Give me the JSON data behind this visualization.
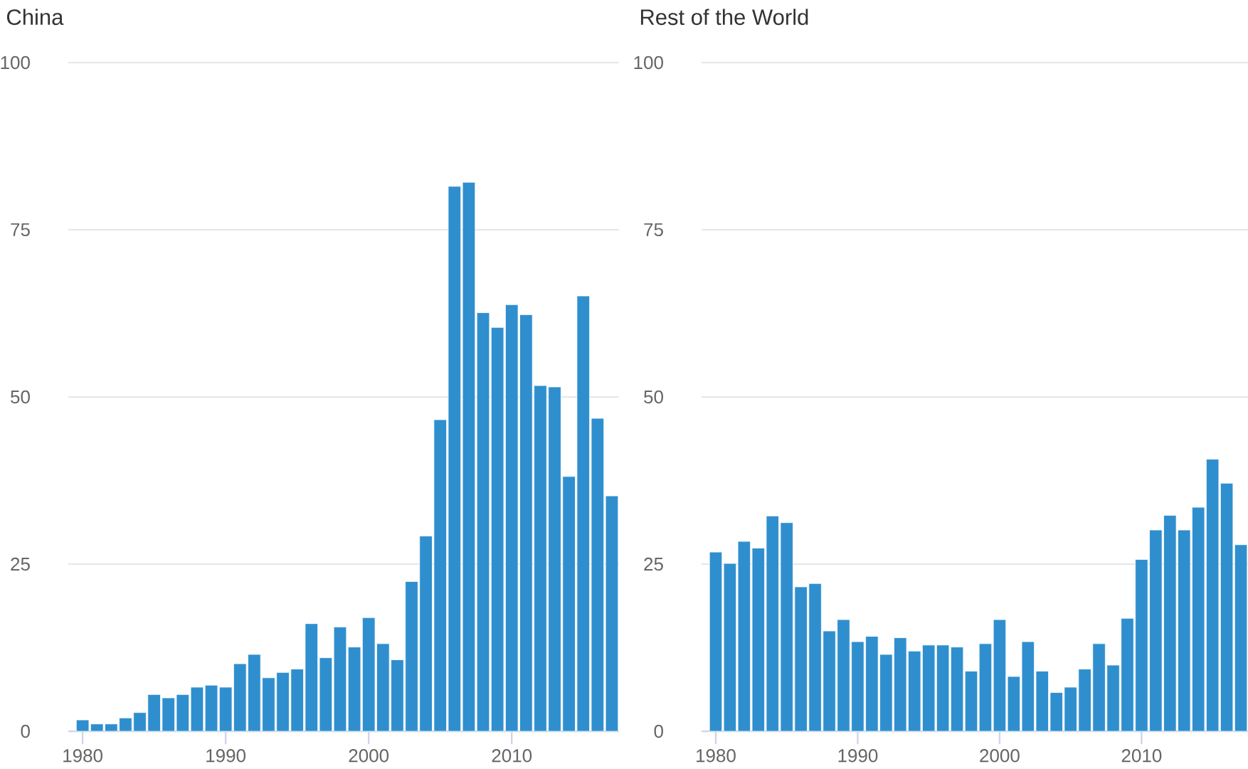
{
  "chart_data": [
    {
      "type": "bar",
      "title": "China",
      "color": "#2f8fce",
      "grid": "y",
      "x": [
        1980,
        1981,
        1982,
        1983,
        1984,
        1985,
        1986,
        1987,
        1988,
        1989,
        1990,
        1991,
        1992,
        1993,
        1994,
        1995,
        1996,
        1997,
        1998,
        1999,
        2000,
        2001,
        2002,
        2003,
        2004,
        2005,
        2006,
        2007,
        2008,
        2009,
        2010,
        2011,
        2012,
        2013,
        2014,
        2015,
        2016,
        2017
      ],
      "values": [
        1.7,
        1.1,
        1.1,
        2.0,
        2.8,
        5.5,
        5.0,
        5.5,
        6.6,
        6.9,
        6.6,
        10.1,
        11.5,
        8.0,
        8.8,
        9.3,
        16.1,
        11.0,
        15.6,
        12.6,
        17.0,
        13.1,
        10.7,
        22.4,
        29.2,
        46.6,
        81.5,
        82.1,
        62.6,
        60.4,
        63.8,
        62.3,
        51.7,
        51.5,
        38.1,
        65.1,
        46.8,
        35.2
      ],
      "xlim": [
        1979,
        2017.5
      ],
      "xticks": [
        1980,
        1990,
        2000,
        2010
      ],
      "ylim": [
        0,
        100
      ],
      "yticks": [
        0,
        25,
        50,
        75,
        100
      ]
    },
    {
      "type": "bar",
      "title": "Rest of the World",
      "color": "#2f8fce",
      "grid": "y",
      "x": [
        1980,
        1981,
        1982,
        1983,
        1984,
        1985,
        1986,
        1987,
        1988,
        1989,
        1990,
        1991,
        1992,
        1993,
        1994,
        1995,
        1996,
        1997,
        1998,
        1999,
        2000,
        2001,
        2002,
        2003,
        2004,
        2005,
        2006,
        2007,
        2008,
        2009,
        2010,
        2011,
        2012,
        2013,
        2014,
        2015,
        2016,
        2017
      ],
      "values": [
        26.8,
        25.1,
        28.4,
        27.4,
        32.2,
        31.2,
        21.6,
        22.1,
        15.0,
        16.7,
        13.4,
        14.2,
        11.5,
        14.0,
        12.0,
        12.9,
        12.9,
        12.6,
        9.0,
        13.1,
        16.7,
        8.2,
        13.4,
        9.0,
        5.8,
        6.6,
        9.3,
        13.1,
        9.9,
        16.9,
        25.7,
        30.1,
        32.3,
        30.1,
        33.5,
        40.7,
        37.1,
        27.9
      ],
      "xlim": [
        1979,
        2017.5
      ],
      "xticks": [
        1980,
        1990,
        2000,
        2010
      ],
      "ylim": [
        0,
        100
      ],
      "yticks": [
        0,
        25,
        50,
        75,
        100
      ]
    }
  ]
}
